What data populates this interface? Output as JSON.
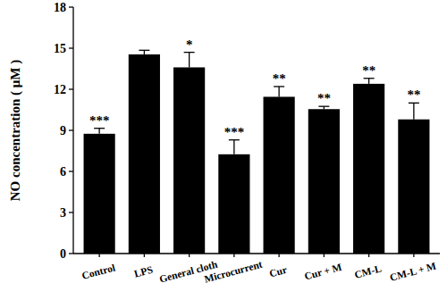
{
  "chart_data": {
    "type": "bar",
    "y_label": "NO concentration ( μM )",
    "categories": [
      "Control",
      "LPS",
      "General cloth",
      "Microcurrent",
      "Cur",
      "Cur + M",
      "CM-L",
      "CM-L + M"
    ],
    "values": [
      8.75,
      14.55,
      13.6,
      7.25,
      11.45,
      10.55,
      12.4,
      9.8
    ],
    "errors": [
      0.4,
      0.3,
      1.1,
      1.05,
      0.75,
      0.2,
      0.4,
      1.2
    ],
    "significance": [
      "***",
      null,
      "*",
      "***",
      "**",
      "**",
      "**",
      "**"
    ],
    "color": "#000000",
    "ylim": [
      0,
      18
    ],
    "yticks": [
      0,
      3,
      6,
      9,
      12,
      15,
      18
    ],
    "grid": false
  }
}
